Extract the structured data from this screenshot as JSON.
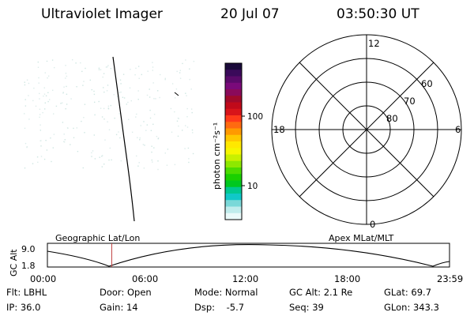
{
  "header": {
    "title": "Ultraviolet Imager",
    "date": "20 Jul 07",
    "time": "03:50:30 UT"
  },
  "colorbar": {
    "label": "photon cm⁻²s⁻¹",
    "ticks": [
      "100",
      "10"
    ],
    "colors": [
      "#1a0a3a",
      "#3a0a5a",
      "#5a0a6a",
      "#7a0a7a",
      "#8a0a5a",
      "#a00a2a",
      "#c00a1a",
      "#d8141a",
      "#ff3a1a",
      "#ff6a10",
      "#ff9a00",
      "#ffc800",
      "#ffe800",
      "#f6f600",
      "#c8f000",
      "#8ee800",
      "#4cdc00",
      "#1ad000",
      "#00c820",
      "#00c890",
      "#10c8c8",
      "#7ad8d8",
      "#c0ecec",
      "#eafafa"
    ]
  },
  "polar": {
    "lat_labels": [
      "60",
      "70",
      "80"
    ],
    "mlt_labels": {
      "top": "12",
      "left": "18",
      "right": "6",
      "bottom": "0"
    }
  },
  "timeline": {
    "ylabel": "GC Alt",
    "y_ticks": [
      "9.0",
      "1.8"
    ],
    "left_label": "Geographic Lat/Lon",
    "right_label": "Apex MLat/MLT",
    "x_ticks": [
      "00:00",
      "06:00",
      "12:00",
      "18:00",
      "23:59"
    ],
    "marker_time_fraction": 0.16,
    "marker_color": "#c04040"
  },
  "info": {
    "row1": {
      "flt": "Flt: LBHL",
      "door": "Door: Open",
      "mode": "Mode: Normal",
      "gcalt": "GC Alt: 2.1 Re",
      "glat": "GLat:  69.7"
    },
    "row2": {
      "ip": "IP: 36.0",
      "gain": "Gain: 14",
      "dsp": "Dsp:    -5.7",
      "seq": "Seq: 39",
      "glon": "GLon: 343.3"
    }
  }
}
